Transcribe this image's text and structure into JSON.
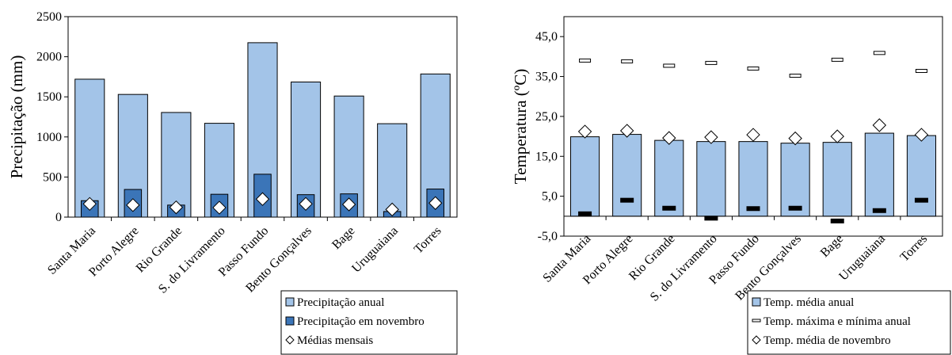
{
  "chart_data": [
    {
      "type": "bar",
      "categories": [
        "Santa Maria",
        "Porto Alegre",
        "Rio Grande",
        "S. do Livramento",
        "Passo Fundo",
        "Bento Gonçalves",
        "Bage",
        "Uruguaiana",
        "Torres"
      ],
      "ylabel": "Precipitação (mm)",
      "ylim": [
        0,
        2500
      ],
      "yticks": [
        "0",
        "500",
        "1000",
        "1500",
        "2000",
        "2500"
      ],
      "series": [
        {
          "name": "Precipitação anual",
          "kind": "bar",
          "color": "#a3c4e8",
          "values": [
            1720,
            1530,
            1305,
            1170,
            2175,
            1685,
            1510,
            1165,
            1785
          ]
        },
        {
          "name": "Precipitação em novembro",
          "kind": "bar",
          "color": "#3b75b8",
          "values": [
            205,
            345,
            150,
            285,
            535,
            280,
            290,
            70,
            350
          ]
        },
        {
          "name": "Médias mensais",
          "kind": "diamond",
          "color": "#ffffff",
          "values": [
            165,
            150,
            122,
            118,
            225,
            165,
            158,
            95,
            175
          ]
        }
      ],
      "legend": "bottom-right",
      "grid": false
    },
    {
      "type": "bar",
      "categories": [
        "Santa Maria",
        "Porto Alegre",
        "Rio Grande",
        "S. do Livramento",
        "Passo Fundo",
        "Bento Gonçalves",
        "Bage",
        "Uruguaiana",
        "Torres"
      ],
      "ylabel": "Temperatura (ºC)",
      "ylim": [
        -5,
        50
      ],
      "yticks": [
        "-5,0",
        "5,0",
        "15,0",
        "25,0",
        "35,0",
        "45,0"
      ],
      "series": [
        {
          "name": "Temp. média anual",
          "kind": "bar",
          "color": "#a3c4e8",
          "values": [
            19.9,
            20.5,
            19.0,
            18.7,
            18.7,
            18.3,
            18.5,
            20.8,
            20.2
          ]
        },
        {
          "name": "Temp. máxima e mínima anual",
          "kind": "dash",
          "color": "#ffffff",
          "max": [
            39.0,
            38.8,
            37.7,
            38.4,
            37.0,
            35.2,
            39.2,
            40.9,
            36.4
          ],
          "min": [
            0.6,
            4.0,
            2.0,
            -0.5,
            1.9,
            2.0,
            -1.2,
            1.4,
            4.0
          ]
        },
        {
          "name": "Temp. média de novembro",
          "kind": "diamond",
          "color": "#ffffff",
          "values": [
            21.2,
            21.4,
            19.6,
            19.8,
            20.4,
            19.5,
            20.0,
            22.8,
            20.4
          ]
        }
      ],
      "legend": "bottom-right",
      "grid": false
    }
  ]
}
